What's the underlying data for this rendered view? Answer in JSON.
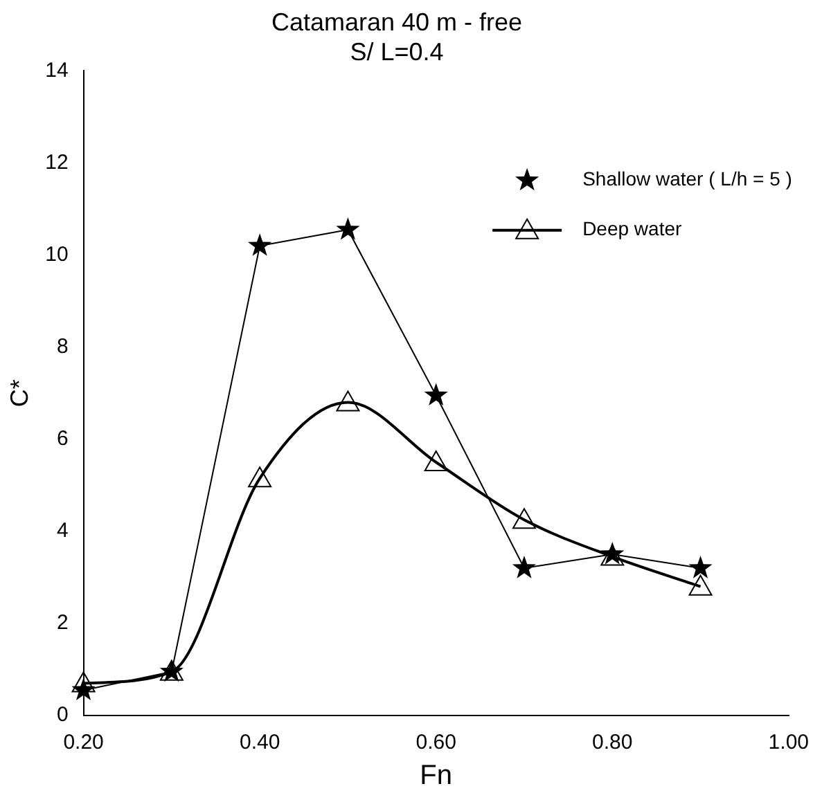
{
  "chart_data": {
    "type": "line",
    "title": [
      "Catamaran 40 m - free",
      "S/ L=0.4"
    ],
    "xlabel": "Fn",
    "ylabel": "C*",
    "xlim": [
      0.2,
      1.0
    ],
    "xticks": [
      {
        "value": 0.2,
        "label": "0.20"
      },
      {
        "value": 0.4,
        "label": "0.40"
      },
      {
        "value": 0.6,
        "label": "0.60"
      },
      {
        "value": 0.8,
        "label": "0.80"
      },
      {
        "value": 1.0,
        "label": "1.00"
      }
    ],
    "ylim": [
      0,
      14
    ],
    "yticks": [
      0,
      2,
      4,
      6,
      8,
      10,
      12,
      14
    ],
    "grid": false,
    "legend": "top right",
    "x": [
      0.2,
      0.3,
      0.4,
      0.5,
      0.6,
      0.7,
      0.8,
      0.9
    ],
    "series": [
      {
        "name": "Shallow water ( L/h = 5 )",
        "color": "#000000",
        "marker": "star",
        "values": [
          0.55,
          0.95,
          10.2,
          10.55,
          6.95,
          3.2,
          3.5,
          3.2
        ]
      },
      {
        "name": "Deep water",
        "color": "#000000",
        "marker": "triangle",
        "values": [
          0.7,
          0.95,
          5.15,
          6.8,
          5.5,
          4.25,
          3.45,
          2.8
        ]
      }
    ]
  }
}
